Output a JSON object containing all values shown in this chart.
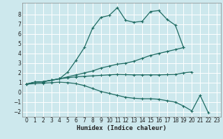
{
  "xlabel": "Humidex (Indice chaleur)",
  "bg_color": "#cde8ed",
  "grid_color": "#ffffff",
  "line_color": "#1e6b62",
  "xlim": [
    -0.5,
    23.5
  ],
  "ylim": [
    -2.5,
    9.2
  ],
  "xticks": [
    0,
    1,
    2,
    3,
    4,
    5,
    6,
    7,
    8,
    9,
    10,
    11,
    12,
    13,
    14,
    15,
    16,
    17,
    18,
    19,
    20,
    21,
    22,
    23
  ],
  "yticks": [
    -2,
    -1,
    0,
    1,
    2,
    3,
    4,
    5,
    6,
    7,
    8
  ],
  "series": [
    {
      "x": [
        0,
        1,
        2,
        3,
        4,
        5,
        6,
        7,
        8,
        9,
        10,
        11,
        12,
        13,
        14,
        15,
        16,
        17,
        18,
        19
      ],
      "y": [
        0.85,
        1.05,
        1.1,
        1.25,
        1.4,
        2.1,
        3.3,
        4.6,
        6.6,
        7.7,
        7.9,
        8.7,
        7.4,
        7.2,
        7.3,
        8.3,
        8.4,
        7.5,
        6.9,
        4.6
      ]
    },
    {
      "x": [
        0,
        1,
        2,
        3,
        4,
        5,
        6,
        7,
        8,
        9,
        10,
        11,
        12,
        13,
        14,
        15,
        16,
        17,
        18,
        19
      ],
      "y": [
        0.85,
        1.05,
        1.1,
        1.25,
        1.4,
        1.6,
        1.8,
        2.0,
        2.2,
        2.5,
        2.7,
        2.9,
        3.0,
        3.2,
        3.5,
        3.8,
        4.0,
        4.2,
        4.4,
        4.6
      ]
    },
    {
      "x": [
        0,
        1,
        2,
        3,
        4,
        5,
        6,
        7,
        8,
        9,
        10,
        11,
        12,
        13,
        14,
        15,
        16,
        17,
        18,
        19,
        20
      ],
      "y": [
        0.85,
        1.05,
        1.1,
        1.25,
        1.4,
        1.5,
        1.6,
        1.65,
        1.7,
        1.75,
        1.8,
        1.85,
        1.82,
        1.8,
        1.8,
        1.8,
        1.8,
        1.82,
        1.85,
        2.0,
        2.1
      ]
    },
    {
      "x": [
        0,
        1,
        2,
        3,
        4,
        5,
        6,
        7,
        8,
        9,
        10,
        11,
        12,
        13,
        14,
        15,
        16,
        17,
        18,
        19,
        20,
        21,
        22
      ],
      "y": [
        0.85,
        0.9,
        0.95,
        1.0,
        1.05,
        1.0,
        0.9,
        0.7,
        0.4,
        0.1,
        -0.1,
        -0.3,
        -0.5,
        -0.6,
        -0.65,
        -0.65,
        -0.7,
        -0.85,
        -1.0,
        -1.4,
        -1.9,
        -0.3,
        -2.1
      ]
    }
  ]
}
